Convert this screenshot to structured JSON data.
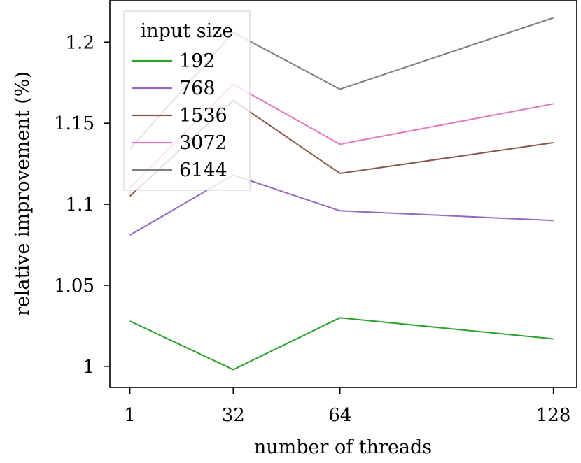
{
  "chart_data": {
    "type": "line",
    "xlabel": "number of threads",
    "ylabel": "relative improvement (%)",
    "x": [
      1,
      32,
      64,
      128
    ],
    "xticks": [
      "1",
      "32",
      "64",
      "128"
    ],
    "yticks": [
      "1",
      "1.05",
      "1.1",
      "1.15",
      "1.2"
    ],
    "ytick_values": [
      1.0,
      1.05,
      1.1,
      1.15,
      1.2
    ],
    "xlim": [
      -5,
      135
    ],
    "ylim": [
      0.987,
      1.226
    ],
    "grid": false,
    "legend": {
      "title": "input size",
      "position": "top-left"
    },
    "series": [
      {
        "name": "192",
        "color": "#2ca02c",
        "values": [
          1.028,
          0.998,
          1.03,
          1.017
        ]
      },
      {
        "name": "768",
        "color": "#9467bd",
        "values": [
          1.081,
          1.118,
          1.096,
          1.09
        ]
      },
      {
        "name": "1536",
        "color": "#8c564b",
        "values": [
          1.105,
          1.164,
          1.119,
          1.138
        ]
      },
      {
        "name": "3072",
        "color": "#e377c2",
        "values": [
          1.11,
          1.174,
          1.137,
          1.162
        ]
      },
      {
        "name": "6144",
        "color": "#7f7f7f",
        "values": [
          1.134,
          1.206,
          1.171,
          1.215
        ]
      }
    ]
  }
}
